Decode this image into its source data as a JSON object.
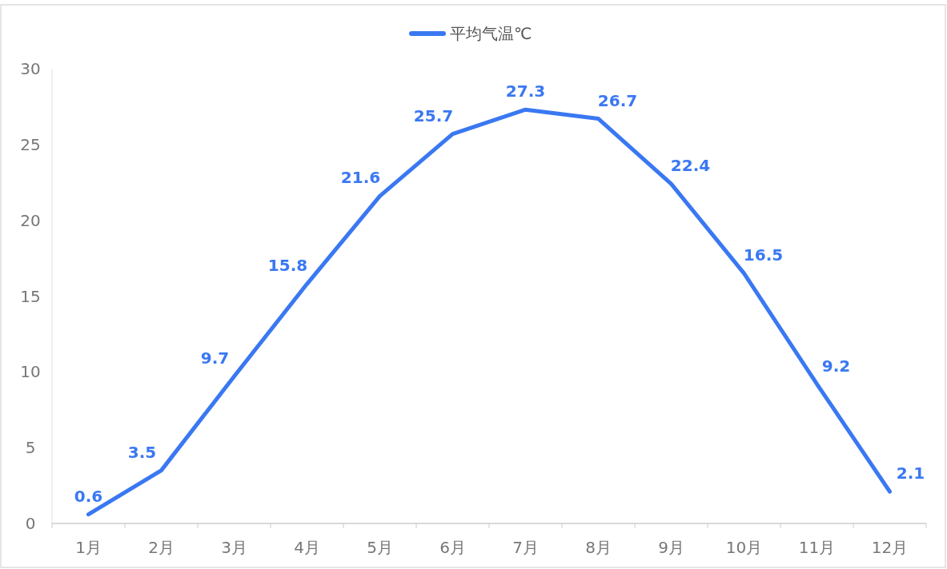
{
  "chart_data": {
    "type": "line",
    "categories": [
      "1月",
      "2月",
      "3月",
      "4月",
      "5月",
      "6月",
      "7月",
      "8月",
      "9月",
      "10月",
      "11月",
      "12月"
    ],
    "series": [
      {
        "name": "平均气温℃",
        "color": "#3a78f2",
        "values": [
          0.6,
          3.5,
          9.7,
          15.8,
          21.6,
          25.7,
          27.3,
          26.7,
          22.4,
          16.5,
          9.2,
          2.1
        ]
      }
    ],
    "ylim": [
      0,
      30
    ],
    "yticks": [
      0,
      5,
      10,
      15,
      20,
      25,
      30
    ],
    "grid": false,
    "legend": "top",
    "data_labels": true,
    "marker": "none",
    "line_style": "solid"
  }
}
